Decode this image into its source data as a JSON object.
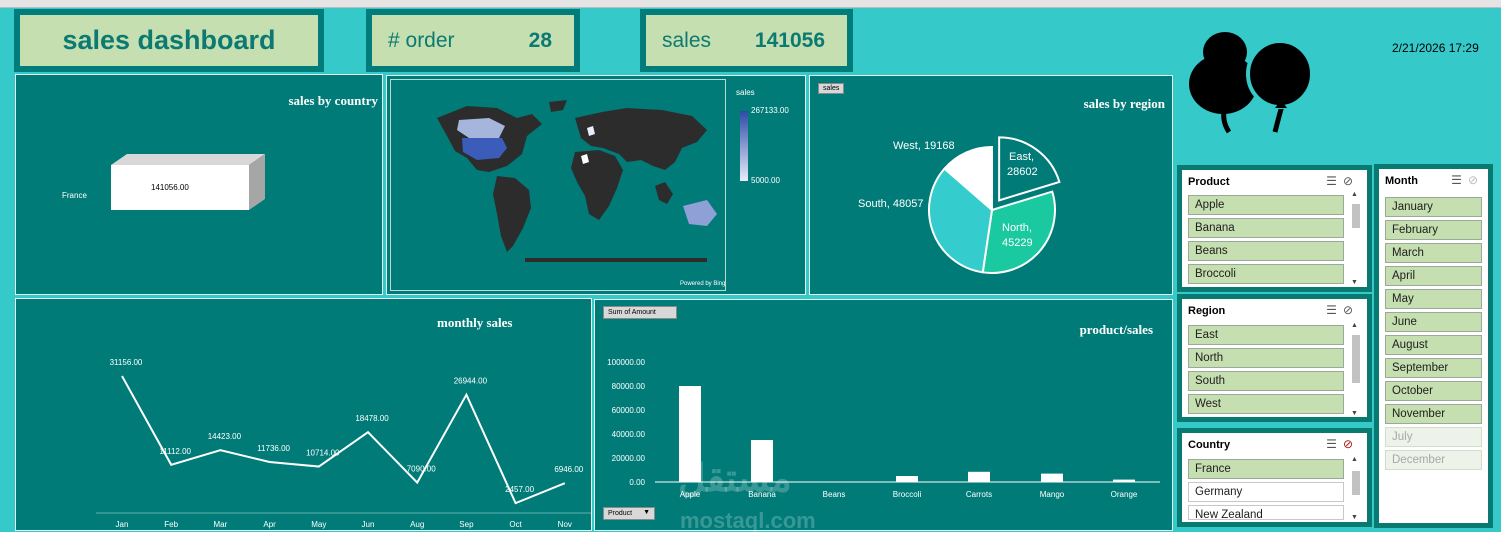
{
  "header": {
    "title": "sales dashboard",
    "order_label": "# order",
    "order_value": "28",
    "sales_label": "sales",
    "sales_value": "141056",
    "datetime": "2/21/2026 17:29"
  },
  "colors": {
    "background": "#35c9c9",
    "panel": "#007b78",
    "slicer_item": "#c5dfb0",
    "title_text": "#0c7a72",
    "pie_north": "#1ac9a0",
    "pie_south": "#34cccc",
    "pie_west": "#ffffff"
  },
  "country_chart": {
    "title": "sales by country",
    "category": "France",
    "value_label": "141056.00"
  },
  "map": {
    "legend_title": "sales",
    "legend_max": "267133.00",
    "legend_min": "5000.00",
    "credit": "Powered by Bing"
  },
  "region_chart": {
    "title": "sales by region",
    "filter_button": "sales",
    "labels": {
      "east": "East,",
      "east_val": "28602",
      "north": "North,",
      "north_val": "45229",
      "south": "South, 48057",
      "west": "West, 19168"
    }
  },
  "monthly_chart": {
    "title": "monthly sales"
  },
  "product_chart": {
    "title": "product/sales",
    "field_button": "Sum of Amount",
    "axis_button": "Product"
  },
  "slicers": {
    "product": {
      "title": "Product",
      "items": [
        "Apple",
        "Banana",
        "Beans",
        "Broccoli"
      ]
    },
    "region": {
      "title": "Region",
      "items": [
        "East",
        "North",
        "South",
        "West"
      ]
    },
    "country": {
      "title": "Country",
      "items": [
        "France",
        "Germany",
        "New Zealand"
      ]
    },
    "month": {
      "title": "Month",
      "items": [
        "January",
        "February",
        "March",
        "April",
        "May",
        "June",
        "August",
        "September",
        "October",
        "November",
        "July",
        "December"
      ]
    }
  },
  "watermark": {
    "arabic": "مستقل",
    "latin": "mostaql.com"
  },
  "chart_data": [
    {
      "type": "bar",
      "title": "sales by country",
      "categories": [
        "France"
      ],
      "values": [
        141056
      ]
    },
    {
      "type": "pie",
      "title": "sales by region",
      "categories": [
        "East",
        "North",
        "South",
        "West"
      ],
      "values": [
        28602,
        45229,
        48057,
        19168
      ]
    },
    {
      "type": "line",
      "title": "monthly sales",
      "categories": [
        "Jan",
        "Feb",
        "Mar",
        "Apr",
        "May",
        "Jun",
        "Aug",
        "Sep",
        "Oct",
        "Nov"
      ],
      "values": [
        31156,
        11112,
        14423,
        11736,
        10714,
        18478,
        7090,
        26944,
        2457,
        6946
      ],
      "value_labels": [
        "31156.00",
        "11112.00",
        "14423.00",
        "11736.00",
        "10714.00",
        "18478.00",
        "7090.00",
        "26944.00",
        "2457.00",
        "6946.00"
      ],
      "ylim": [
        0,
        35000
      ]
    },
    {
      "type": "bar",
      "title": "product/sales",
      "categories": [
        "Apple",
        "Banana",
        "Beans",
        "Broccoli",
        "Carrots",
        "Mango",
        "Orange"
      ],
      "values": [
        80000,
        35000,
        0,
        5000,
        8500,
        7000,
        2000
      ],
      "yticks": [
        "0.00",
        "20000.00",
        "40000.00",
        "60000.00",
        "80000.00",
        "100000.00"
      ],
      "ylim": [
        0,
        100000
      ]
    }
  ]
}
